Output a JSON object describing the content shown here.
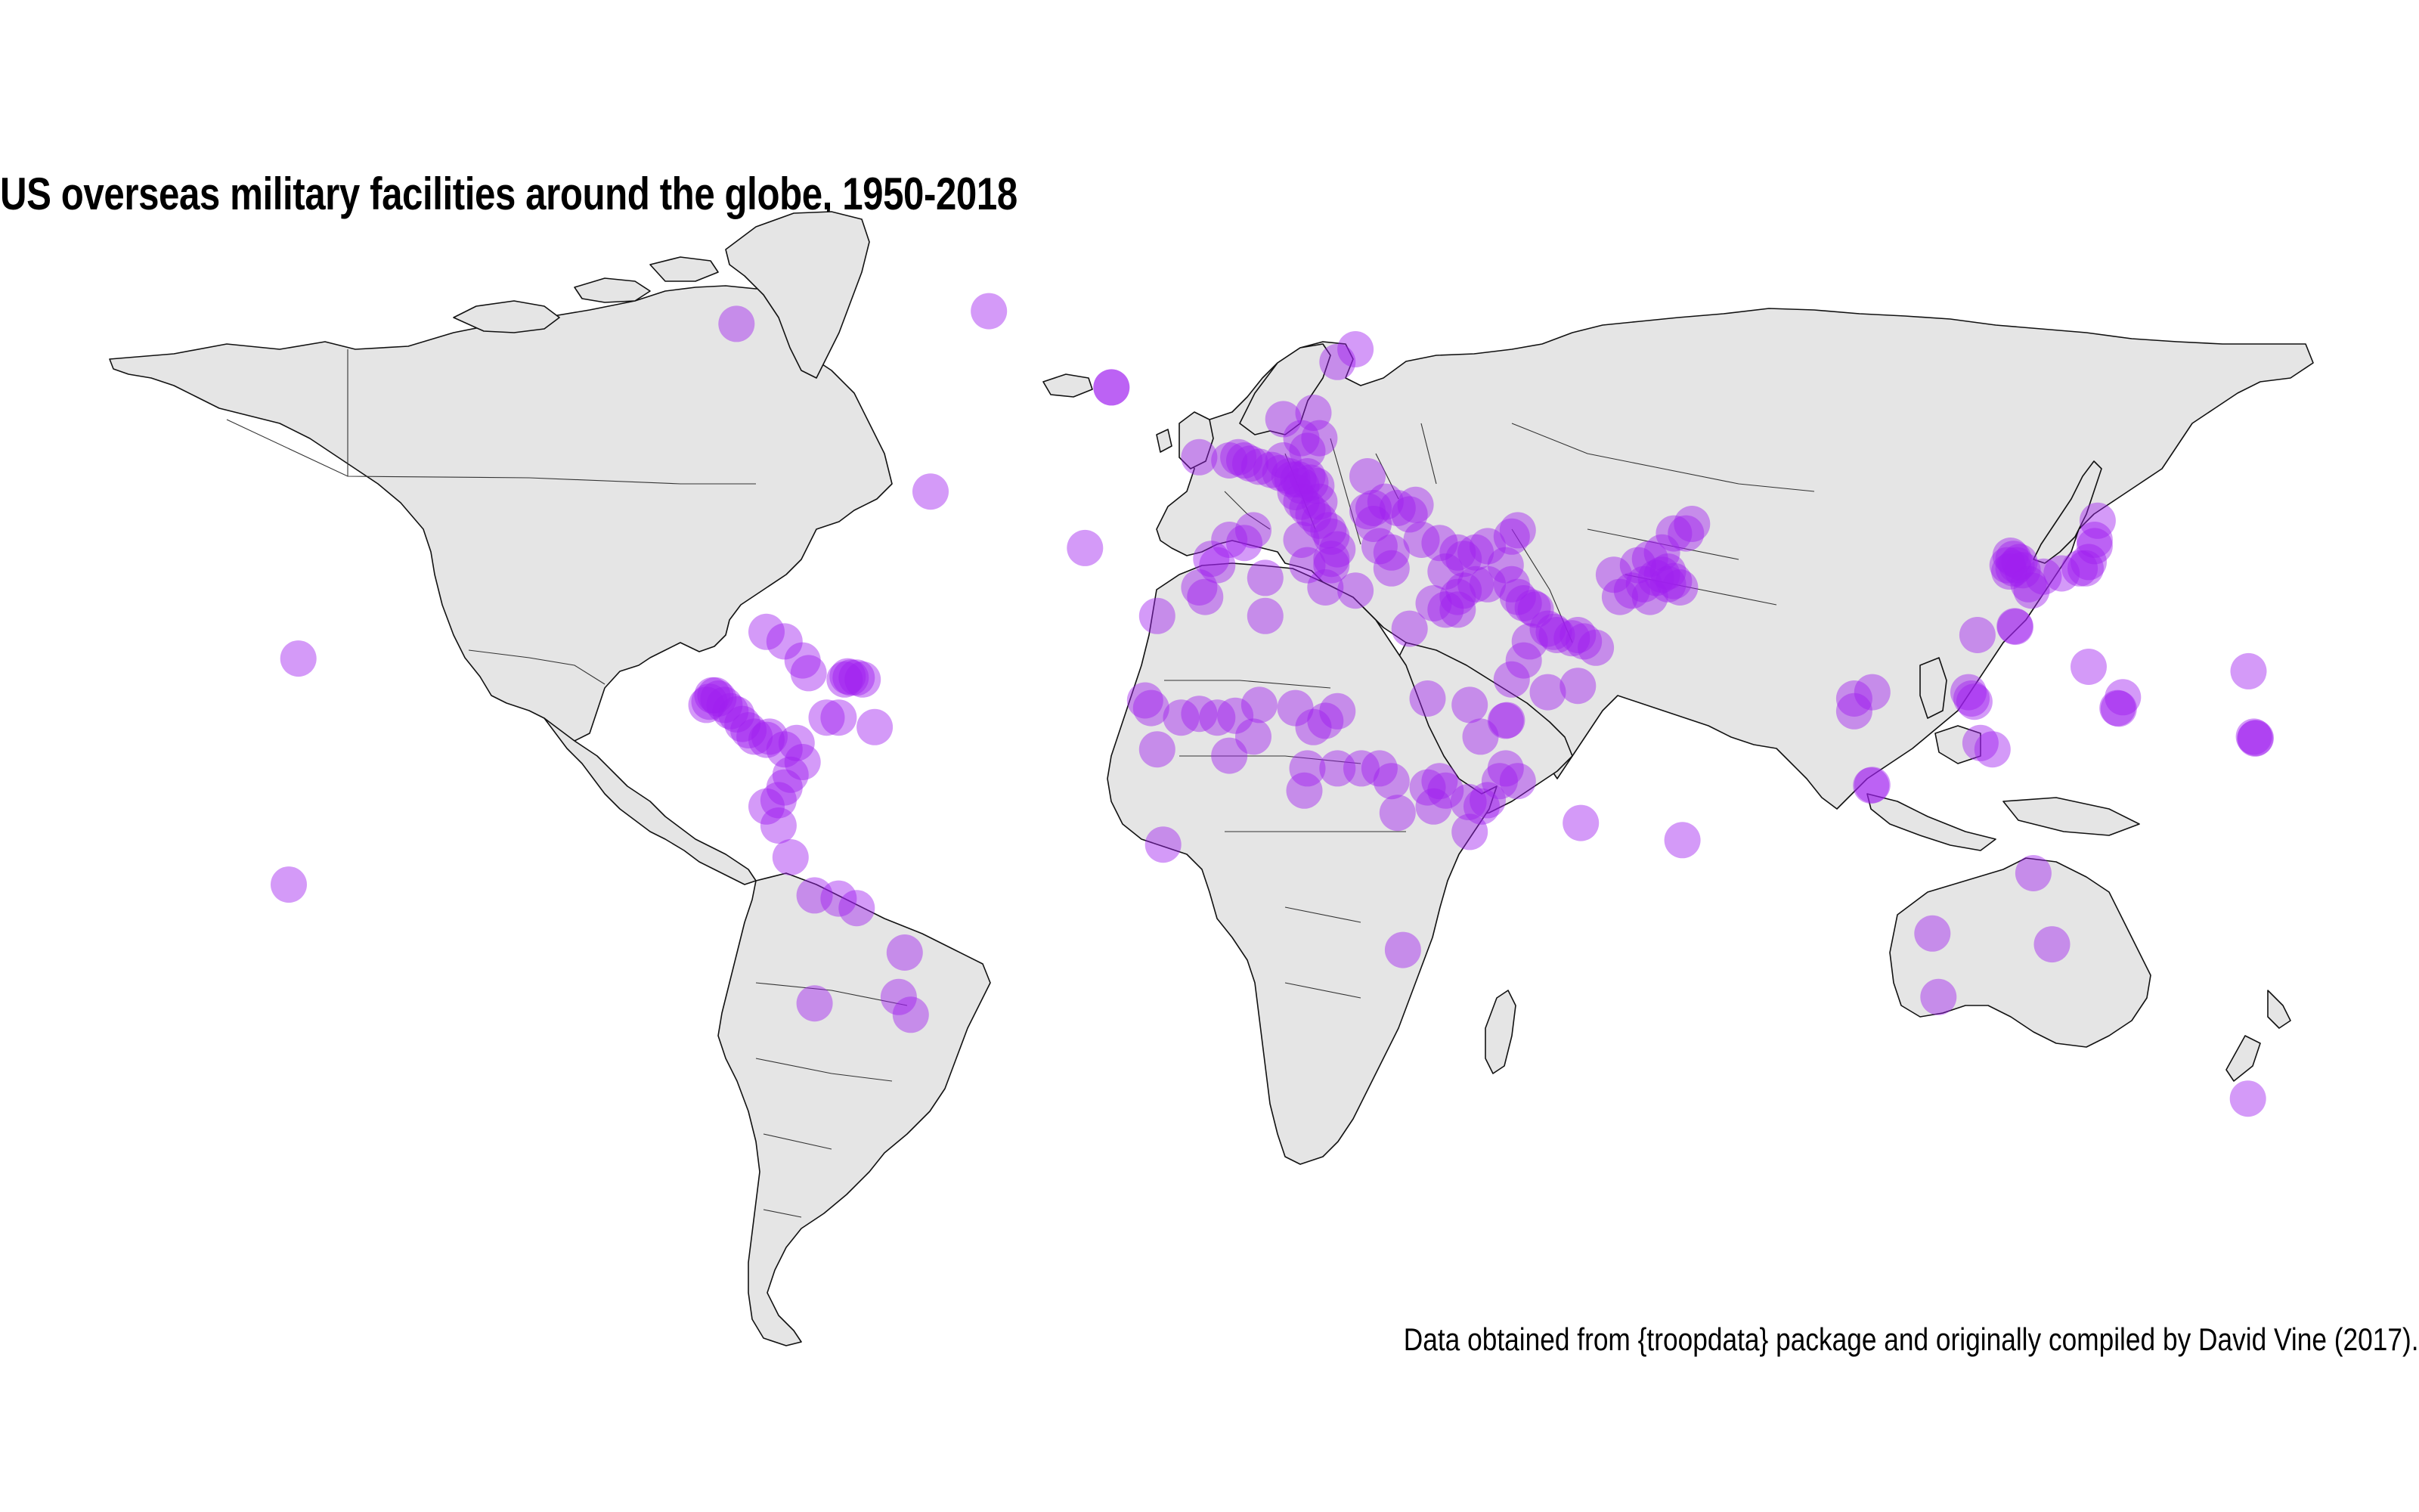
{
  "title": "US overseas military facilities around the globe, 1950-2018",
  "caption": "Data obtained from {troopdata} package and originally compiled by David Vine (2017).",
  "style": {
    "point_color": "#a020f0",
    "point_opacity": 0.45,
    "land_color": "#e5e5e5",
    "border_color": "#333333"
  },
  "map_data": {
    "type": "point-map",
    "projection": "equirectangular",
    "points": [
      {
        "lon": -43,
        "lat": 76
      },
      {
        "lon": -22.6,
        "lat": 64
      },
      {
        "lon": -22.6,
        "lat": 64
      },
      {
        "lon": -85,
        "lat": 74
      },
      {
        "lon": -52.7,
        "lat": 47.6
      },
      {
        "lon": -157.9,
        "lat": 21.3
      },
      {
        "lon": -159.5,
        "lat": -14.3
      },
      {
        "lon": -27,
        "lat": 38.7
      },
      {
        "lon": -8,
        "lat": 53
      },
      {
        "lon": -3,
        "lat": 52.5
      },
      {
        "lon": -1.5,
        "lat": 53
      },
      {
        "lon": -0.5,
        "lat": 52.5
      },
      {
        "lon": 0.5,
        "lat": 52
      },
      {
        "lon": 2,
        "lat": 51.5
      },
      {
        "lon": 4,
        "lat": 51
      },
      {
        "lon": 5.5,
        "lat": 50.5
      },
      {
        "lon": 6,
        "lat": 52.5
      },
      {
        "lon": 7,
        "lat": 50
      },
      {
        "lon": 7.5,
        "lat": 49.5
      },
      {
        "lon": 8.5,
        "lat": 49.5
      },
      {
        "lon": 9,
        "lat": 48.5
      },
      {
        "lon": 10,
        "lat": 50
      },
      {
        "lon": 10.5,
        "lat": 49
      },
      {
        "lon": 11.5,
        "lat": 48.5
      },
      {
        "lon": 8,
        "lat": 47.5
      },
      {
        "lon": 9,
        "lat": 46
      },
      {
        "lon": 10,
        "lat": 45
      },
      {
        "lon": 11,
        "lat": 44
      },
      {
        "lon": 12,
        "lat": 43
      },
      {
        "lon": 13.5,
        "lat": 41.5
      },
      {
        "lon": 14,
        "lat": 40.5
      },
      {
        "lon": 15,
        "lat": 38.5
      },
      {
        "lon": 14,
        "lat": 37
      },
      {
        "lon": 9,
        "lat": 40
      },
      {
        "lon": 12,
        "lat": 46
      },
      {
        "lon": 10,
        "lat": 54
      },
      {
        "lon": 9,
        "lat": 56
      },
      {
        "lon": 6,
        "lat": 59
      },
      {
        "lon": 11,
        "lat": 60
      },
      {
        "lon": 15,
        "lat": 68
      },
      {
        "lon": 18,
        "lat": 70
      },
      {
        "lon": 12,
        "lat": 56
      },
      {
        "lon": 20,
        "lat": 50
      },
      {
        "lon": -5,
        "lat": 36
      },
      {
        "lon": -6,
        "lat": 37
      },
      {
        "lon": -3,
        "lat": 40
      },
      {
        "lon": 1,
        "lat": 41.5
      },
      {
        "lon": -0.5,
        "lat": 39.5
      },
      {
        "lon": 14,
        "lat": 36
      },
      {
        "lon": 21,
        "lat": 42.5
      },
      {
        "lon": 20,
        "lat": 44.5
      },
      {
        "lon": 21,
        "lat": 45
      },
      {
        "lon": 23,
        "lat": 46
      },
      {
        "lon": 25,
        "lat": 45
      },
      {
        "lon": 27,
        "lat": 44
      },
      {
        "lon": 28,
        "lat": 45.5
      },
      {
        "lon": 22,
        "lat": 39
      },
      {
        "lon": 24,
        "lat": 38
      },
      {
        "lon": 24,
        "lat": 35.5
      },
      {
        "lon": 33,
        "lat": 35
      },
      {
        "lon": 29,
        "lat": 40
      },
      {
        "lon": 32,
        "lat": 39.5
      },
      {
        "lon": 35,
        "lat": 38
      },
      {
        "lon": 36,
        "lat": 37
      },
      {
        "lon": 38,
        "lat": 38
      },
      {
        "lon": 40,
        "lat": 39
      },
      {
        "lon": 44,
        "lat": 40.5
      },
      {
        "lon": 45,
        "lat": 41.5
      },
      {
        "lon": 36,
        "lat": 32
      },
      {
        "lon": 35,
        "lat": 31
      },
      {
        "lon": 38,
        "lat": 33
      },
      {
        "lon": 40,
        "lat": 33
      },
      {
        "lon": 43,
        "lat": 36
      },
      {
        "lon": 44,
        "lat": 33
      },
      {
        "lon": 45,
        "lat": 31
      },
      {
        "lon": 46,
        "lat": 30
      },
      {
        "lon": 47.5,
        "lat": 29.3
      },
      {
        "lon": 48,
        "lat": 29
      },
      {
        "lon": 50,
        "lat": 26
      },
      {
        "lon": 51,
        "lat": 25.5
      },
      {
        "lon": 51.5,
        "lat": 25
      },
      {
        "lon": 54,
        "lat": 24.5
      },
      {
        "lon": 55,
        "lat": 25
      },
      {
        "lon": 56,
        "lat": 24
      },
      {
        "lon": 58,
        "lat": 23
      },
      {
        "lon": 47,
        "lat": 24
      },
      {
        "lon": 46,
        "lat": 21
      },
      {
        "lon": 44,
        "lat": 18
      },
      {
        "lon": 55,
        "lat": 17
      },
      {
        "lon": 50,
        "lat": 16
      },
      {
        "lon": 62,
        "lat": 31
      },
      {
        "lon": 64,
        "lat": 32
      },
      {
        "lon": 66,
        "lat": 33
      },
      {
        "lon": 67,
        "lat": 31
      },
      {
        "lon": 68,
        "lat": 34
      },
      {
        "lon": 69,
        "lat": 34.5
      },
      {
        "lon": 70,
        "lat": 33
      },
      {
        "lon": 71,
        "lat": 33.5
      },
      {
        "lon": 72,
        "lat": 32.5
      },
      {
        "lon": 70,
        "lat": 35
      },
      {
        "lon": 61,
        "lat": 34.5
      },
      {
        "lon": 65,
        "lat": 36
      },
      {
        "lon": 67,
        "lat": 37
      },
      {
        "lon": 69,
        "lat": 38
      },
      {
        "lon": 74,
        "lat": 42.5
      },
      {
        "lon": 73,
        "lat": 41
      },
      {
        "lon": 71,
        "lat": 41
      },
      {
        "lon": -80,
        "lat": 25.5
      },
      {
        "lon": -77,
        "lat": 24
      },
      {
        "lon": -74,
        "lat": 21
      },
      {
        "lon": -73,
        "lat": 19
      },
      {
        "lon": -66,
        "lat": 18.3
      },
      {
        "lon": -65,
        "lat": 18.3
      },
      {
        "lon": -64,
        "lat": 18
      },
      {
        "lon": -67,
        "lat": 18
      },
      {
        "lon": -66.5,
        "lat": 18.5
      },
      {
        "lon": -89,
        "lat": 15.5
      },
      {
        "lon": -88,
        "lat": 15
      },
      {
        "lon": -87,
        "lat": 14
      },
      {
        "lon": -86,
        "lat": 13
      },
      {
        "lon": -85,
        "lat": 12.5
      },
      {
        "lon": -84,
        "lat": 11
      },
      {
        "lon": -83,
        "lat": 10
      },
      {
        "lon": -82,
        "lat": 9
      },
      {
        "lon": -80,
        "lat": 8.5
      },
      {
        "lon": -79.5,
        "lat": 9
      },
      {
        "lon": -77,
        "lat": 7
      },
      {
        "lon": -75,
        "lat": 8
      },
      {
        "lon": -74,
        "lat": 5
      },
      {
        "lon": -76,
        "lat": 3
      },
      {
        "lon": -77,
        "lat": 1
      },
      {
        "lon": -78,
        "lat": -1
      },
      {
        "lon": -80,
        "lat": -2
      },
      {
        "lon": -78,
        "lat": -5
      },
      {
        "lon": -76,
        "lat": -10
      },
      {
        "lon": -72,
        "lat": -16
      },
      {
        "lon": -88.5,
        "lat": 15.5
      },
      {
        "lon": -89.5,
        "lat": 14.5
      },
      {
        "lon": -90,
        "lat": 14
      },
      {
        "lon": -70,
        "lat": 12
      },
      {
        "lon": -68,
        "lat": 12
      },
      {
        "lon": -62,
        "lat": 10.5
      },
      {
        "lon": -68,
        "lat": -16.5
      },
      {
        "lon": -65,
        "lat": -18
      },
      {
        "lon": -57,
        "lat": -25
      },
      {
        "lon": -72,
        "lat": -33
      },
      {
        "lon": -56,
        "lat": -34.8
      },
      {
        "lon": -14,
        "lat": -8
      },
      {
        "lon": -15,
        "lat": 28
      },
      {
        "lon": -7,
        "lat": 31
      },
      {
        "lon": -8,
        "lat": 32.5
      },
      {
        "lon": 3,
        "lat": 34
      },
      {
        "lon": 10,
        "lat": 36
      },
      {
        "lon": 13,
        "lat": 32.5
      },
      {
        "lon": 18,
        "lat": 32
      },
      {
        "lon": 3,
        "lat": 28
      },
      {
        "lon": -17,
        "lat": 14.7
      },
      {
        "lon": -16,
        "lat": 13.5
      },
      {
        "lon": -15,
        "lat": 7
      },
      {
        "lon": -11,
        "lat": 12
      },
      {
        "lon": -8,
        "lat": 12.6
      },
      {
        "lon": -2,
        "lat": 12.3
      },
      {
        "lon": -5,
        "lat": 12
      },
      {
        "lon": 1,
        "lat": 9
      },
      {
        "lon": -3,
        "lat": 6
      },
      {
        "lon": 2,
        "lat": 14
      },
      {
        "lon": 8,
        "lat": 13.5
      },
      {
        "lon": 13,
        "lat": 11.5
      },
      {
        "lon": 11,
        "lat": 10.5
      },
      {
        "lon": 15,
        "lat": 13
      },
      {
        "lon": 19,
        "lat": 4
      },
      {
        "lon": 15,
        "lat": 4
      },
      {
        "lon": 10,
        "lat": 4
      },
      {
        "lon": 9.5,
        "lat": 0.5
      },
      {
        "lon": 22,
        "lat": 4
      },
      {
        "lon": 24,
        "lat": 2
      },
      {
        "lon": 25,
        "lat": -3
      },
      {
        "lon": 30,
        "lat": 1
      },
      {
        "lon": 32,
        "lat": 2
      },
      {
        "lon": 31,
        "lat": -2
      },
      {
        "lon": 33,
        "lat": 0.5
      },
      {
        "lon": 36.8,
        "lat": -1.3
      },
      {
        "lon": 39,
        "lat": -2
      },
      {
        "lon": 40,
        "lat": -1
      },
      {
        "lon": 42,
        "lat": 2
      },
      {
        "lon": 43,
        "lat": 4
      },
      {
        "lon": 45,
        "lat": 2
      },
      {
        "lon": 37,
        "lat": -6
      },
      {
        "lon": 43,
        "lat": 11.5
      },
      {
        "lon": 43.2,
        "lat": 11.6
      },
      {
        "lon": 38.8,
        "lat": 9
      },
      {
        "lon": 37,
        "lat": 14
      },
      {
        "lon": 30,
        "lat": 15
      },
      {
        "lon": 27,
        "lat": 26
      },
      {
        "lon": 31,
        "lat": 30
      },
      {
        "lon": 33,
        "lat": 29
      },
      {
        "lon": 35,
        "lat": 29
      },
      {
        "lon": 25.9,
        "lat": -24.6
      },
      {
        "lon": 55.5,
        "lat": -4.6
      },
      {
        "lon": 72.4,
        "lat": -7.3
      },
      {
        "lon": 127,
        "lat": 37.5
      },
      {
        "lon": 127.5,
        "lat": 37
      },
      {
        "lon": 128,
        "lat": 36
      },
      {
        "lon": 129,
        "lat": 35.2
      },
      {
        "lon": 126.5,
        "lat": 36
      },
      {
        "lon": 126.8,
        "lat": 35
      },
      {
        "lon": 128.5,
        "lat": 36.5
      },
      {
        "lon": 127.5,
        "lat": 35.5
      },
      {
        "lon": 130,
        "lat": 33
      },
      {
        "lon": 130.5,
        "lat": 32
      },
      {
        "lon": 132.5,
        "lat": 34.2
      },
      {
        "lon": 135.5,
        "lat": 34.7
      },
      {
        "lon": 138.5,
        "lat": 35.5
      },
      {
        "lon": 139.5,
        "lat": 35.5
      },
      {
        "lon": 140,
        "lat": 36.5
      },
      {
        "lon": 141,
        "lat": 40
      },
      {
        "lon": 141.5,
        "lat": 43
      },
      {
        "lon": 141,
        "lat": 39
      },
      {
        "lon": 127.8,
        "lat": 26.3
      },
      {
        "lon": 127.7,
        "lat": 26.4
      },
      {
        "lon": 121.5,
        "lat": 25
      },
      {
        "lon": 120,
        "lat": 16
      },
      {
        "lon": 120.5,
        "lat": 15
      },
      {
        "lon": 121,
        "lat": 14.5
      },
      {
        "lon": 122,
        "lat": 8
      },
      {
        "lon": 124,
        "lat": 7
      },
      {
        "lon": 145,
        "lat": 13.4
      },
      {
        "lon": 144.8,
        "lat": 13.5
      },
      {
        "lon": 145.7,
        "lat": 15.2
      },
      {
        "lon": 140,
        "lat": 20
      },
      {
        "lon": 166.6,
        "lat": 19.3
      },
      {
        "lon": 167.7,
        "lat": 8.7
      },
      {
        "lon": 167.8,
        "lat": 8.8
      },
      {
        "lon": 167.5,
        "lat": 9
      },
      {
        "lon": 166.5,
        "lat": -48
      },
      {
        "lon": 104,
        "lat": 16
      },
      {
        "lon": 101,
        "lat": 15
      },
      {
        "lon": 101,
        "lat": 13
      },
      {
        "lon": 103.8,
        "lat": 1.3
      },
      {
        "lon": 104,
        "lat": 1.4
      },
      {
        "lon": 114,
        "lat": -22
      },
      {
        "lon": 115,
        "lat": -32
      },
      {
        "lon": 133.9,
        "lat": -23.7
      },
      {
        "lon": 130.8,
        "lat": -12.5
      },
      {
        "lon": -58,
        "lat": -32
      }
    ]
  }
}
